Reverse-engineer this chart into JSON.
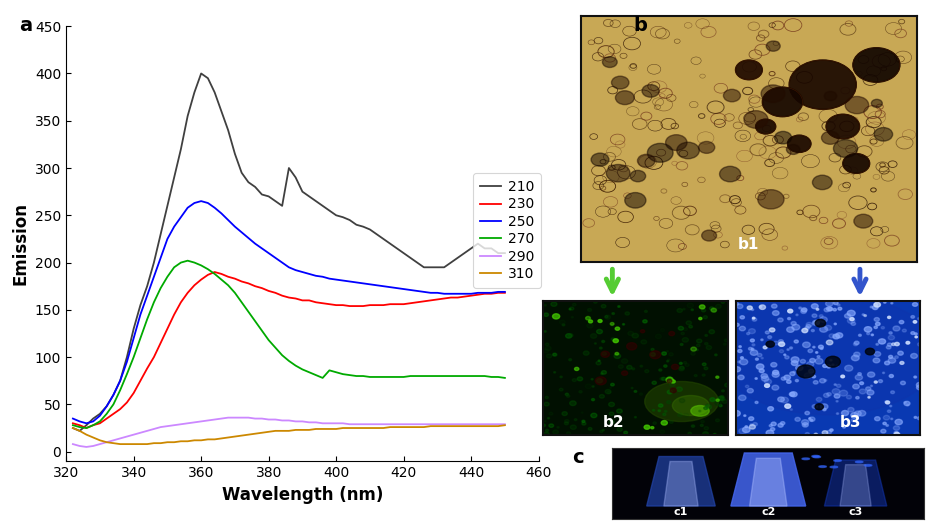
{
  "title_a": "a",
  "title_b": "b",
  "title_c": "c",
  "xlabel": "Wavelength (nm)",
  "ylabel": "Emission",
  "xlim": [
    320,
    460
  ],
  "ylim": [
    -10,
    450
  ],
  "xticks": [
    320,
    340,
    360,
    380,
    400,
    420,
    440,
    460
  ],
  "yticks": [
    0,
    50,
    100,
    150,
    200,
    250,
    300,
    350,
    400,
    450
  ],
  "legend_labels": [
    "210",
    "230",
    "250",
    "270",
    "290",
    "310"
  ],
  "line_colors": [
    "#404040",
    "#ff0000",
    "#0000ff",
    "#00aa00",
    "#cc88ff",
    "#cc8800"
  ],
  "spectra": {
    "210": {
      "x": [
        322,
        324,
        326,
        328,
        330,
        332,
        334,
        336,
        338,
        340,
        342,
        344,
        346,
        348,
        350,
        352,
        354,
        356,
        358,
        360,
        362,
        364,
        366,
        368,
        370,
        372,
        374,
        376,
        378,
        380,
        382,
        384,
        386,
        388,
        390,
        392,
        394,
        396,
        398,
        400,
        402,
        404,
        406,
        408,
        410,
        412,
        414,
        416,
        418,
        420,
        422,
        424,
        426,
        428,
        430,
        432,
        434,
        436,
        438,
        440,
        442,
        444,
        446,
        448,
        450
      ],
      "y": [
        25,
        22,
        28,
        35,
        40,
        48,
        60,
        75,
        100,
        130,
        155,
        175,
        200,
        230,
        260,
        290,
        320,
        355,
        380,
        400,
        395,
        380,
        360,
        340,
        315,
        295,
        285,
        280,
        272,
        270,
        265,
        260,
        300,
        290,
        275,
        270,
        265,
        260,
        255,
        250,
        248,
        245,
        240,
        238,
        235,
        230,
        225,
        220,
        215,
        210,
        205,
        200,
        195,
        195,
        195,
        195,
        200,
        205,
        210,
        215,
        220,
        215,
        215,
        210,
        210
      ]
    },
    "230": {
      "x": [
        322,
        324,
        326,
        328,
        330,
        332,
        334,
        336,
        338,
        340,
        342,
        344,
        346,
        348,
        350,
        352,
        354,
        356,
        358,
        360,
        362,
        364,
        366,
        368,
        370,
        372,
        374,
        376,
        378,
        380,
        382,
        384,
        386,
        388,
        390,
        392,
        394,
        396,
        398,
        400,
        402,
        404,
        406,
        408,
        410,
        412,
        414,
        416,
        418,
        420,
        422,
        424,
        426,
        428,
        430,
        432,
        434,
        436,
        438,
        440,
        442,
        444,
        446,
        448,
        450
      ],
      "y": [
        30,
        28,
        25,
        28,
        30,
        35,
        40,
        45,
        52,
        62,
        75,
        88,
        100,
        115,
        130,
        145,
        158,
        168,
        176,
        182,
        187,
        190,
        188,
        185,
        183,
        180,
        178,
        175,
        173,
        170,
        168,
        165,
        163,
        162,
        160,
        160,
        158,
        157,
        156,
        155,
        155,
        154,
        154,
        154,
        155,
        155,
        155,
        156,
        156,
        156,
        157,
        158,
        159,
        160,
        161,
        162,
        163,
        163,
        164,
        165,
        166,
        167,
        167,
        168,
        168
      ]
    },
    "250": {
      "x": [
        322,
        324,
        326,
        328,
        330,
        332,
        334,
        336,
        338,
        340,
        342,
        344,
        346,
        348,
        350,
        352,
        354,
        356,
        358,
        360,
        362,
        364,
        366,
        368,
        370,
        372,
        374,
        376,
        378,
        380,
        382,
        384,
        386,
        388,
        390,
        392,
        394,
        396,
        398,
        400,
        402,
        404,
        406,
        408,
        410,
        412,
        414,
        416,
        418,
        420,
        422,
        424,
        426,
        428,
        430,
        432,
        434,
        436,
        438,
        440,
        442,
        444,
        446,
        448,
        450
      ],
      "y": [
        35,
        32,
        30,
        32,
        38,
        48,
        60,
        75,
        95,
        120,
        145,
        165,
        185,
        205,
        225,
        238,
        248,
        258,
        263,
        265,
        263,
        258,
        252,
        245,
        238,
        232,
        226,
        220,
        215,
        210,
        205,
        200,
        195,
        192,
        190,
        188,
        186,
        185,
        183,
        182,
        181,
        180,
        179,
        178,
        177,
        176,
        175,
        174,
        173,
        172,
        171,
        170,
        169,
        168,
        168,
        167,
        167,
        167,
        167,
        167,
        168,
        168,
        168,
        169,
        169
      ]
    },
    "270": {
      "x": [
        322,
        324,
        326,
        328,
        330,
        332,
        334,
        336,
        338,
        340,
        342,
        344,
        346,
        348,
        350,
        352,
        354,
        356,
        358,
        360,
        362,
        364,
        366,
        368,
        370,
        372,
        374,
        376,
        378,
        380,
        382,
        384,
        386,
        388,
        390,
        392,
        394,
        396,
        398,
        400,
        402,
        404,
        406,
        408,
        410,
        412,
        414,
        416,
        418,
        420,
        422,
        424,
        426,
        428,
        430,
        432,
        434,
        436,
        438,
        440,
        442,
        444,
        446,
        448,
        450
      ],
      "y": [
        28,
        26,
        25,
        28,
        32,
        40,
        50,
        65,
        82,
        100,
        120,
        140,
        158,
        173,
        185,
        195,
        200,
        202,
        200,
        197,
        193,
        188,
        182,
        176,
        168,
        158,
        148,
        138,
        128,
        118,
        110,
        102,
        96,
        91,
        87,
        84,
        81,
        78,
        86,
        84,
        82,
        81,
        80,
        80,
        79,
        79,
        79,
        79,
        79,
        79,
        80,
        80,
        80,
        80,
        80,
        80,
        80,
        80,
        80,
        80,
        80,
        80,
        79,
        79,
        78
      ]
    },
    "290": {
      "x": [
        322,
        324,
        326,
        328,
        330,
        332,
        334,
        336,
        338,
        340,
        342,
        344,
        346,
        348,
        350,
        352,
        354,
        356,
        358,
        360,
        362,
        364,
        366,
        368,
        370,
        372,
        374,
        376,
        378,
        380,
        382,
        384,
        386,
        388,
        390,
        392,
        394,
        396,
        398,
        400,
        402,
        404,
        406,
        408,
        410,
        412,
        414,
        416,
        418,
        420,
        422,
        424,
        426,
        428,
        430,
        432,
        434,
        436,
        438,
        440,
        442,
        444,
        446,
        448,
        450
      ],
      "y": [
        8,
        6,
        5,
        6,
        8,
        10,
        12,
        14,
        16,
        18,
        20,
        22,
        24,
        26,
        27,
        28,
        29,
        30,
        31,
        32,
        33,
        34,
        35,
        36,
        36,
        36,
        36,
        35,
        35,
        34,
        34,
        33,
        33,
        32,
        32,
        31,
        31,
        30,
        30,
        30,
        30,
        29,
        29,
        29,
        29,
        29,
        29,
        29,
        29,
        29,
        29,
        29,
        29,
        29,
        29,
        29,
        29,
        29,
        29,
        29,
        29,
        29,
        29,
        29,
        29
      ]
    },
    "310": {
      "x": [
        322,
        324,
        326,
        328,
        330,
        332,
        334,
        336,
        338,
        340,
        342,
        344,
        346,
        348,
        350,
        352,
        354,
        356,
        358,
        360,
        362,
        364,
        366,
        368,
        370,
        372,
        374,
        376,
        378,
        380,
        382,
        384,
        386,
        388,
        390,
        392,
        394,
        396,
        398,
        400,
        402,
        404,
        406,
        408,
        410,
        412,
        414,
        416,
        418,
        420,
        422,
        424,
        426,
        428,
        430,
        432,
        434,
        436,
        438,
        440,
        442,
        444,
        446,
        448,
        450
      ],
      "y": [
        25,
        22,
        18,
        15,
        12,
        10,
        9,
        8,
        8,
        8,
        8,
        8,
        9,
        9,
        10,
        10,
        11,
        11,
        12,
        12,
        13,
        13,
        14,
        15,
        16,
        17,
        18,
        19,
        20,
        21,
        22,
        22,
        22,
        23,
        23,
        23,
        24,
        24,
        24,
        24,
        25,
        25,
        25,
        25,
        25,
        25,
        25,
        26,
        26,
        26,
        26,
        26,
        26,
        27,
        27,
        27,
        27,
        27,
        27,
        27,
        27,
        27,
        27,
        27,
        28
      ]
    }
  },
  "arrow_green": "#55cc33",
  "arrow_blue": "#3355cc"
}
